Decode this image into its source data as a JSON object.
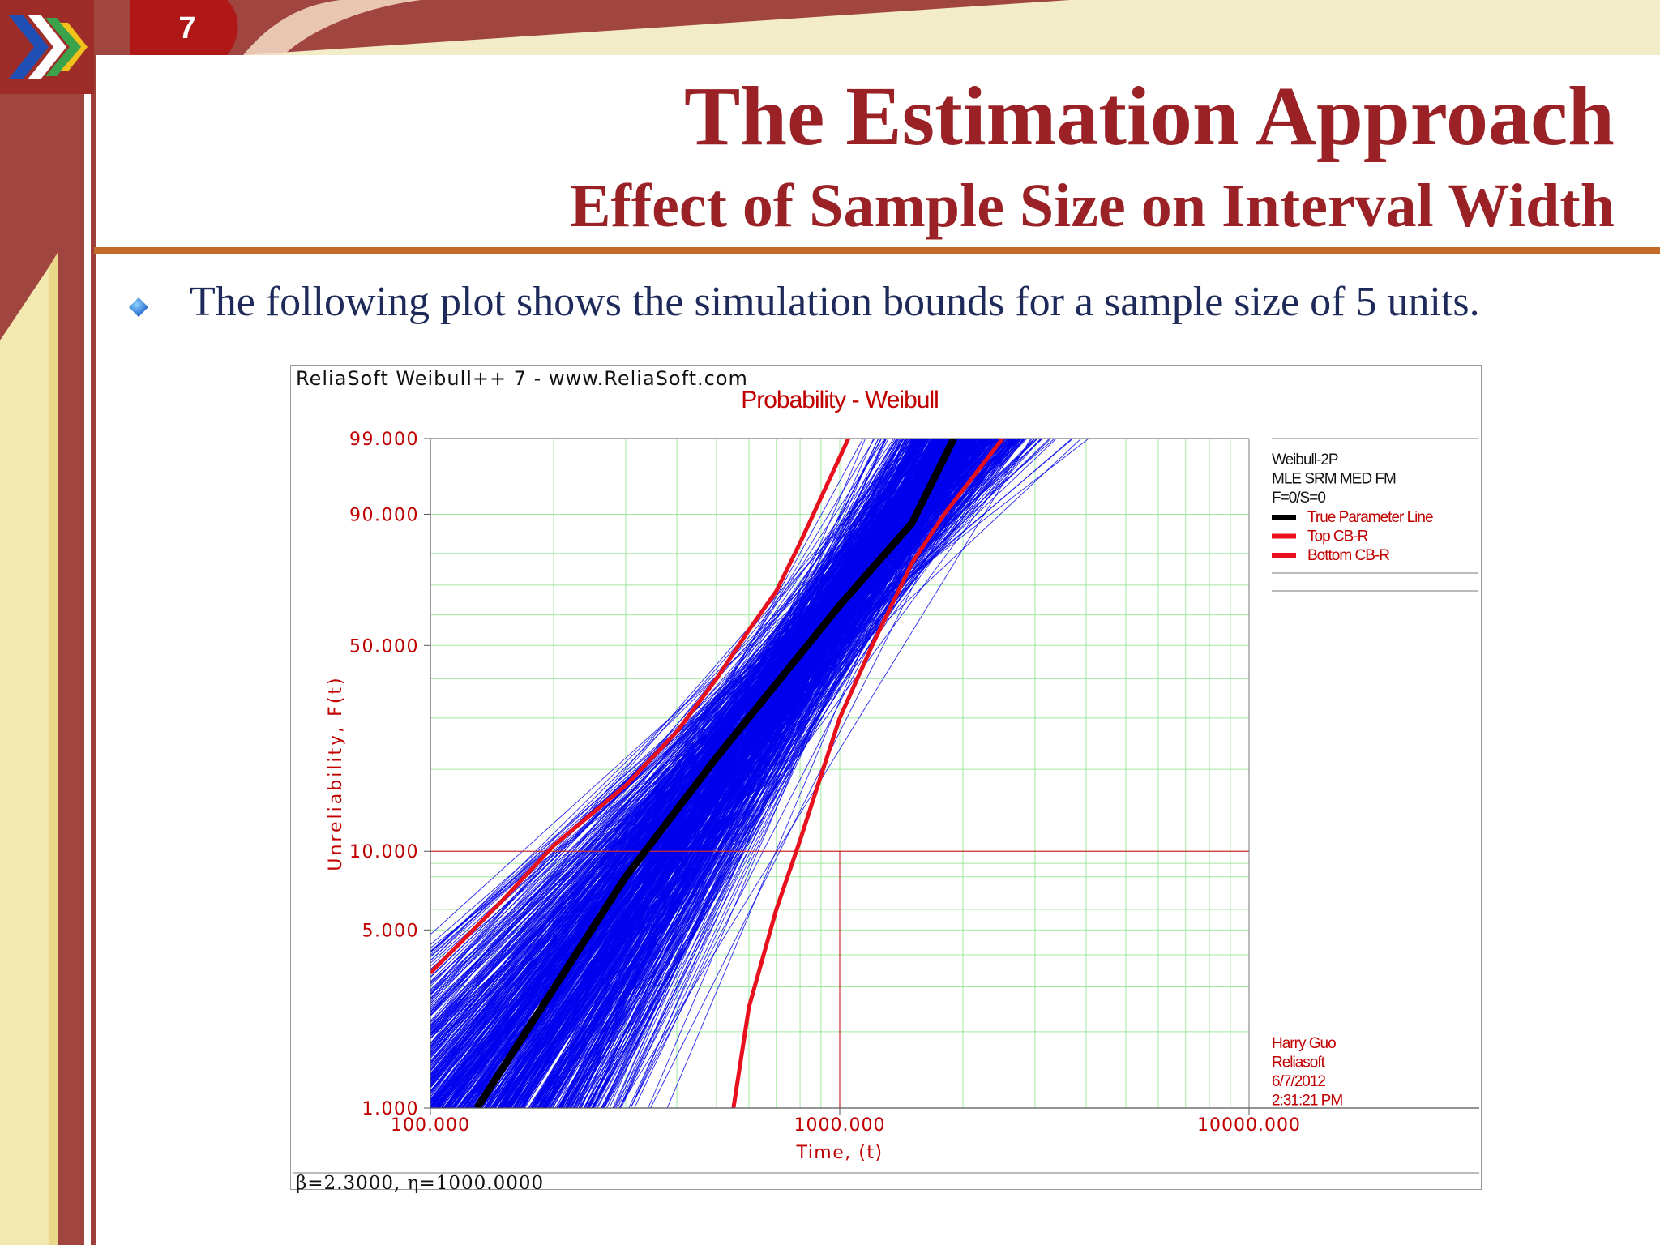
{
  "slide": {
    "number": "7",
    "title": "The Estimation Approach",
    "subtitle": "Effect of Sample Size on Interval Width",
    "bullet": "The following plot shows the simulation bounds for a sample size of 5 units."
  },
  "colors": {
    "title": "#9a2226",
    "bullet_text": "#1e2a5a",
    "sim_lines": "#0000ee",
    "true_line": "#000000",
    "bounds": "#e8101c",
    "axis_text": "#c00000",
    "grid": "#9fe89f",
    "reference_line": "#cc2a2a"
  },
  "chart_header": {
    "source": "ReliaSoft Weibull++ 7 - www.ReliaSoft.com",
    "params": "β=2.3000, η=1000.0000"
  },
  "chart_data": {
    "type": "line",
    "title": "Probability - Weibull",
    "xlabel": "Time, (t)",
    "ylabel": "Unreliability, F(t)",
    "x_scale": "log",
    "y_scale": "weibull",
    "xlim": [
      100,
      10000
    ],
    "ylim": [
      1,
      99
    ],
    "x_tick_labels": [
      "100.000",
      "1000.000",
      "10000.000"
    ],
    "y_ticks": [
      {
        "value": 1,
        "label": "1.000"
      },
      {
        "value": 5,
        "label": "5.000"
      },
      {
        "value": 10,
        "label": "10.000"
      },
      {
        "value": 50,
        "label": "50.000"
      },
      {
        "value": 90,
        "label": "90.000"
      },
      {
        "value": 99,
        "label": "99.000"
      }
    ],
    "true_parameters": {
      "beta": 2.3,
      "eta": 1000
    },
    "reference_lines": {
      "x": 1000,
      "y": 10
    },
    "legend": {
      "position": "right",
      "header": [
        "Weibull-2P",
        "MLE SRM MED FM",
        "F=0/S=0"
      ],
      "entries": [
        {
          "name": "True Parameter Line",
          "color": "#000000"
        },
        {
          "name": "Top CB-R",
          "color": "#e8101c"
        },
        {
          "name": "Bottom CB-R",
          "color": "#e8101c"
        }
      ]
    },
    "annotation": [
      "Harry Guo",
      "Reliasoft",
      "6/7/2012",
      "2:31:21 PM"
    ],
    "series": [
      {
        "name": "True Parameter Line",
        "points": [
          [
            130,
            1
          ],
          [
            300,
            8
          ],
          [
            500,
            22
          ],
          [
            1000,
            63.2
          ],
          [
            1500,
            88
          ],
          [
            1900,
            99
          ]
        ]
      },
      {
        "name": "Top CB-R",
        "points": [
          [
            100,
            3.4
          ],
          [
            150,
            6.5
          ],
          [
            200,
            10.5
          ],
          [
            300,
            17.5
          ],
          [
            400,
            27
          ],
          [
            500,
            40
          ],
          [
            600,
            55
          ],
          [
            700,
            68
          ],
          [
            800,
            83
          ],
          [
            1050,
            99
          ]
        ]
      },
      {
        "name": "Bottom CB-R",
        "points": [
          [
            550,
            1
          ],
          [
            600,
            2.5
          ],
          [
            700,
            6
          ],
          [
            800,
            11
          ],
          [
            900,
            19
          ],
          [
            1000,
            30
          ],
          [
            1200,
            50
          ],
          [
            1500,
            77
          ],
          [
            1800,
            90
          ],
          [
            2500,
            99
          ]
        ]
      }
    ]
  }
}
